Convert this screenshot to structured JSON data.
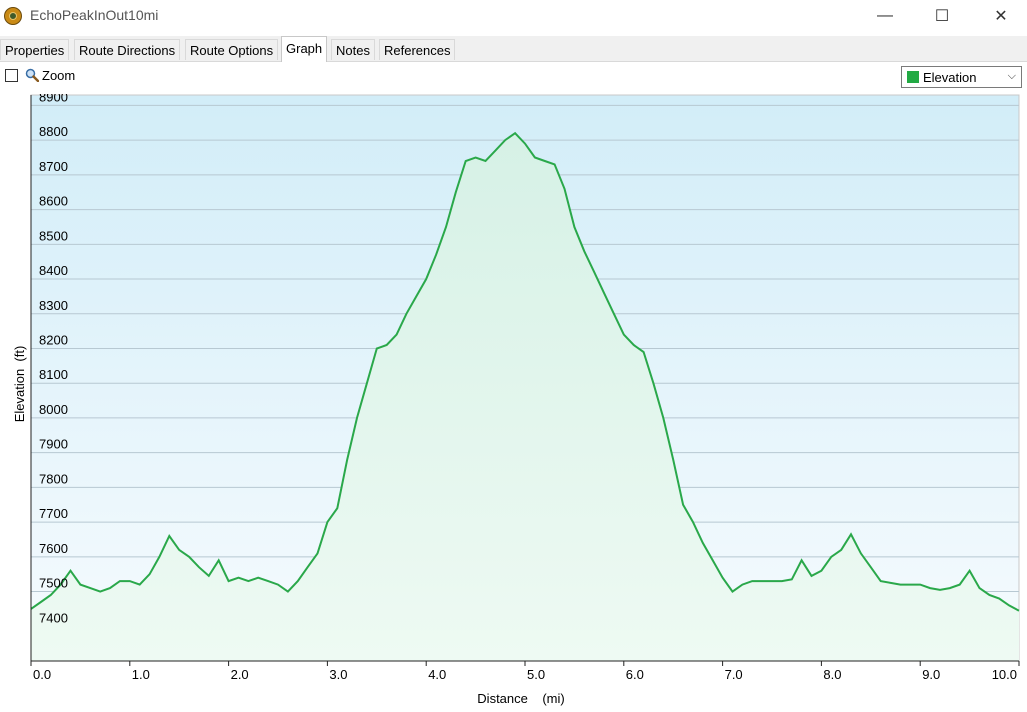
{
  "window": {
    "title": "EchoPeakInOut10mi",
    "minimize": "—",
    "maximize": "☐",
    "close": "✕"
  },
  "tabs": [
    "Properties",
    "Route Directions",
    "Route Options",
    "Graph",
    "Notes",
    "References"
  ],
  "active_tab": "Graph",
  "toolbar": {
    "zoom_label": "Zoom",
    "zoom_checked": false,
    "series_select": "Elevation",
    "series_color": "#22aa44"
  },
  "chart_data": {
    "type": "area",
    "xlabel": "Distance    (mi)",
    "ylabel": "Elevation  (ft)",
    "x_ticks": [
      "0.0",
      "1.0",
      "2.0",
      "3.0",
      "4.0",
      "5.0",
      "6.0",
      "7.0",
      "8.0",
      "9.0",
      "10.0"
    ],
    "y_ticks": [
      "7400",
      "7500",
      "7600",
      "7700",
      "7800",
      "7900",
      "8000",
      "8100",
      "8200",
      "8300",
      "8400",
      "8500",
      "8600",
      "8700",
      "8800",
      "8900"
    ],
    "xlim": [
      0,
      10.0
    ],
    "ylim": [
      7300,
      8930
    ],
    "grid": true,
    "line_color": "#2aa84a",
    "series": [
      {
        "x": [
          0,
          0.1,
          0.2,
          0.3,
          0.4,
          0.5,
          0.6,
          0.7,
          0.8,
          0.9,
          1.0,
          1.1,
          1.2,
          1.3,
          1.4,
          1.5,
          1.6,
          1.7,
          1.8,
          1.9,
          2.0,
          2.1,
          2.2,
          2.3,
          2.4,
          2.5,
          2.6,
          2.7,
          2.8,
          2.9,
          3.0,
          3.1,
          3.2,
          3.3,
          3.4,
          3.5,
          3.6,
          3.7,
          3.8,
          3.9,
          4.0,
          4.1,
          4.2,
          4.3,
          4.4,
          4.5,
          4.6,
          4.7,
          4.8,
          4.9,
          5.0,
          5.1,
          5.2,
          5.3,
          5.4,
          5.5,
          5.6,
          5.7,
          5.8,
          5.9,
          6.0,
          6.1,
          6.2,
          6.3,
          6.4,
          6.5,
          6.6,
          6.7,
          6.8,
          6.9,
          7.0,
          7.1,
          7.2,
          7.3,
          7.4,
          7.5,
          7.6,
          7.7,
          7.8,
          7.9,
          8.0,
          8.1,
          8.2,
          8.3,
          8.4,
          8.5,
          8.6,
          8.7,
          8.8,
          8.9,
          9.0,
          9.1,
          9.2,
          9.3,
          9.4,
          9.5,
          9.6,
          9.7,
          9.8,
          9.9,
          10.0
        ],
        "y": [
          7450,
          7470,
          7490,
          7520,
          7560,
          7520,
          7510,
          7500,
          7510,
          7530,
          7530,
          7520,
          7550,
          7600,
          7660,
          7620,
          7600,
          7570,
          7545,
          7590,
          7530,
          7540,
          7530,
          7540,
          7530,
          7520,
          7500,
          7530,
          7570,
          7610,
          7700,
          7740,
          7880,
          8000,
          8100,
          8200,
          8210,
          8240,
          8300,
          8350,
          8400,
          8470,
          8550,
          8650,
          8740,
          8750,
          8740,
          8770,
          8800,
          8820,
          8790,
          8750,
          8740,
          8730,
          8660,
          8550,
          8480,
          8420,
          8360,
          8300,
          8240,
          8210,
          8190,
          8100,
          8000,
          7880,
          7750,
          7700,
          7640,
          7590,
          7540,
          7500,
          7520,
          7530,
          7530,
          7530,
          7530,
          7535,
          7590,
          7545,
          7560,
          7600,
          7620,
          7665,
          7610,
          7570,
          7530,
          7525,
          7520,
          7520,
          7520,
          7510,
          7505,
          7510,
          7520,
          7560,
          7510,
          7490,
          7480,
          7460,
          7445
        ]
      }
    ]
  }
}
